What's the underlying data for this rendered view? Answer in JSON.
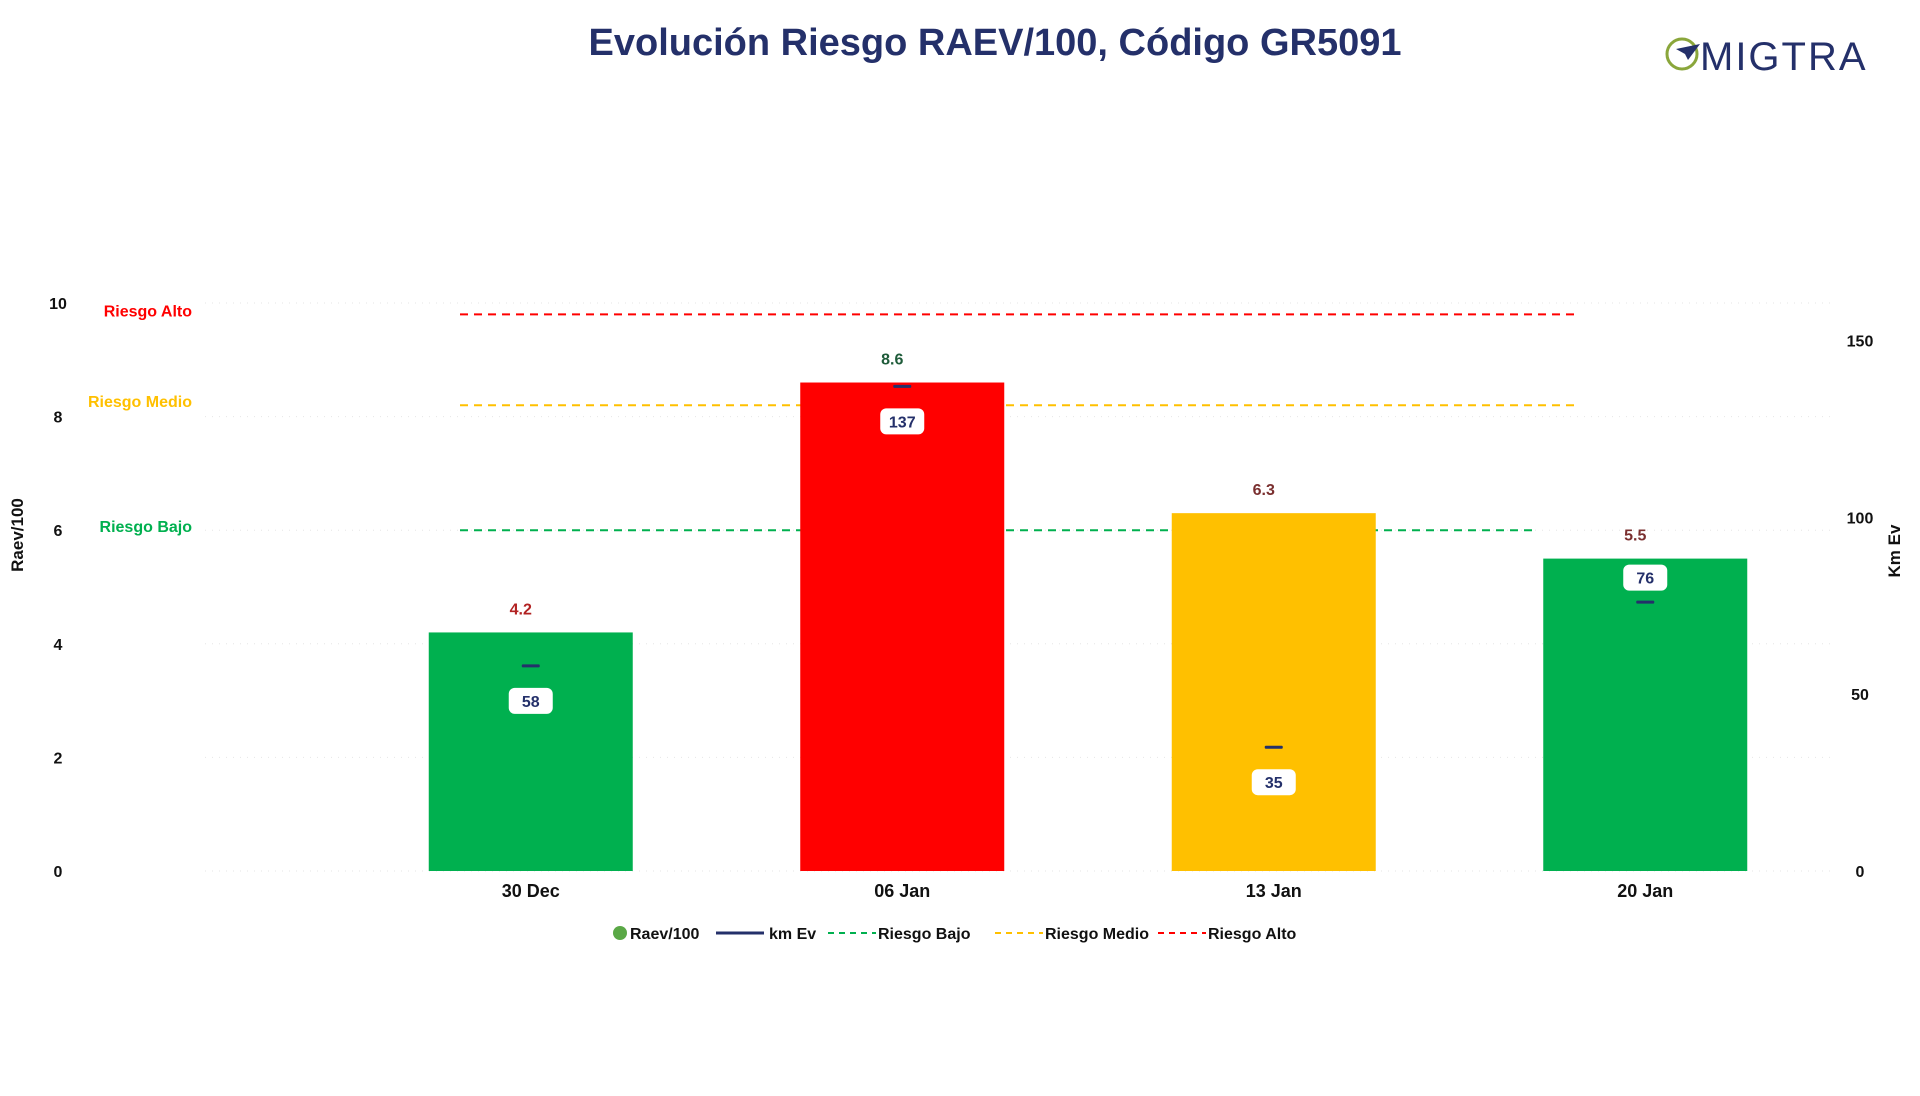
{
  "chart_data": {
    "type": "bar",
    "title": "Evolución Riesgo RAEV/100, Código GR5091",
    "logo": "MIGTRA",
    "categories": [
      "30 Dec",
      "06 Jan",
      "13 Jan",
      "20 Jan"
    ],
    "series": [
      {
        "name": "Raev/100",
        "type": "bar",
        "axis": "left",
        "values": [
          4.2,
          8.6,
          6.3,
          5.5
        ],
        "value_labels": [
          "4.2",
          "8.6",
          "6.3",
          "5.5"
        ],
        "colors": [
          "#00b04f",
          "#ff0000",
          "#ffc000",
          "#00b04f"
        ],
        "label_colors": [
          "#b22222",
          "#1f5c3a",
          "#7a2f2f",
          "#7a2f2f"
        ]
      },
      {
        "name": "km Ev",
        "type": "marker",
        "axis": "right",
        "values": [
          58,
          137,
          35,
          76
        ],
        "value_labels": [
          "58",
          "137",
          "35",
          "76"
        ],
        "color": "#24306a"
      }
    ],
    "reference_lines": [
      {
        "name": "Riesgo Bajo",
        "value": 6,
        "color": "#00b04f"
      },
      {
        "name": "Riesgo Medio",
        "value": 8.2,
        "color": "#ffc000"
      },
      {
        "name": "Riesgo Alto",
        "value": 9.8,
        "color": "#ff0000"
      }
    ],
    "ylabel": "Raev/100",
    "y2label": "Km Ev",
    "ylim": [
      0,
      10
    ],
    "yticks": [
      "0",
      "2",
      "4",
      "6",
      "8",
      "10"
    ],
    "y2lim": [
      0,
      160
    ],
    "y2ticks": [
      "0",
      "50",
      "100",
      "150"
    ],
    "grid": true,
    "legend_position": "bottom-center"
  }
}
